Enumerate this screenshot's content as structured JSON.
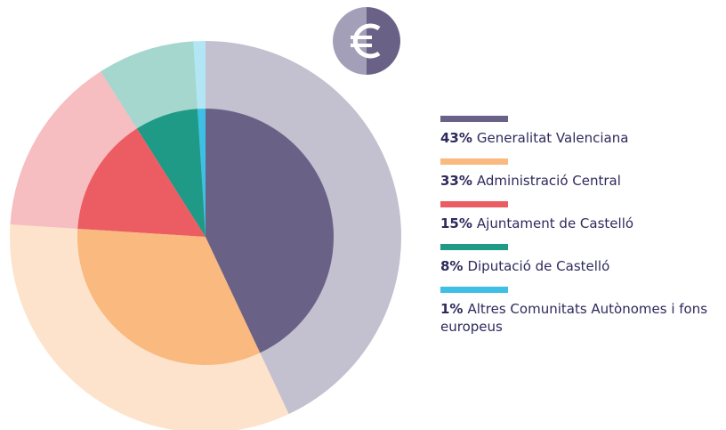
{
  "chart_data": {
    "type": "pie",
    "categories": [
      "Generalitat Valenciana",
      "Administració Central",
      "Ajuntament de Castelló",
      "Diputació de Castelló",
      "Altres Comunitats Autònomes i fons europeus"
    ],
    "values": [
      43,
      33,
      15,
      8,
      1
    ],
    "value_labels": [
      "43%",
      "33%",
      "15%",
      "8%",
      "1%"
    ],
    "colors": [
      "#6a6286",
      "#f9b97f",
      "#ec5d63",
      "#1f9a86",
      "#3ec0e6"
    ]
  }
}
